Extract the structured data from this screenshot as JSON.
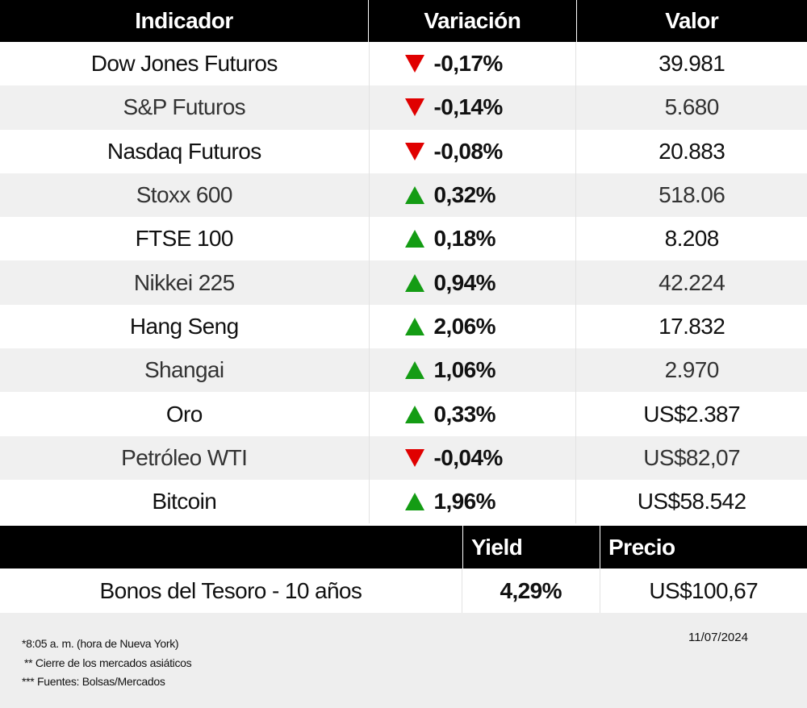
{
  "header": {
    "col_indicator": "Indicador",
    "col_change": "Variación",
    "col_value": "Valor"
  },
  "rows": [
    {
      "name": "Dow Jones Futuros",
      "change": "-0,17%",
      "direction": "down",
      "value": "39.981"
    },
    {
      "name": "S&P Futuros",
      "change": "-0,14%",
      "direction": "down",
      "value": "5.680"
    },
    {
      "name": "Nasdaq Futuros",
      "change": "-0,08%",
      "direction": "down",
      "value": "20.883"
    },
    {
      "name": "Stoxx 600",
      "change": "0,32%",
      "direction": "up",
      "value": "518.06"
    },
    {
      "name": "FTSE 100",
      "change": "0,18%",
      "direction": "up",
      "value": "8.208"
    },
    {
      "name": "Nikkei 225",
      "change": "0,94%",
      "direction": "up",
      "value": "42.224"
    },
    {
      "name": "Hang Seng",
      "change": "2,06%",
      "direction": "up",
      "value": "17.832"
    },
    {
      "name": "Shangai",
      "change": "1,06%",
      "direction": "up",
      "value": "2.970"
    },
    {
      "name": "Oro",
      "change": "0,33%",
      "direction": "up",
      "value": "US$2.387"
    },
    {
      "name": "Petróleo WTI",
      "change": "-0,04%",
      "direction": "down",
      "value": "US$82,07"
    },
    {
      "name": "Bitcoin",
      "change": "1,96%",
      "direction": "up",
      "value": "US$58.542"
    }
  ],
  "bonds": {
    "col_yield": "Yield",
    "col_price": "Precio",
    "name": "Bonos del Tesoro - 10 años",
    "yield": "4,29%",
    "price": "US$100,67"
  },
  "footer": {
    "note1": "*8:05 a. m. (hora de Nueva York)",
    "note2": "** Cierre de los mercados asiáticos",
    "note3": "*** Fuentes: Bolsas/Mercados",
    "date": "11/07/2024"
  },
  "colors": {
    "up": "#149c14",
    "down": "#e00000",
    "header_bg": "#000000",
    "alt_row_bg": "#f0f0f0"
  },
  "icons": {
    "up": "triangle-up-icon",
    "down": "triangle-down-icon"
  }
}
